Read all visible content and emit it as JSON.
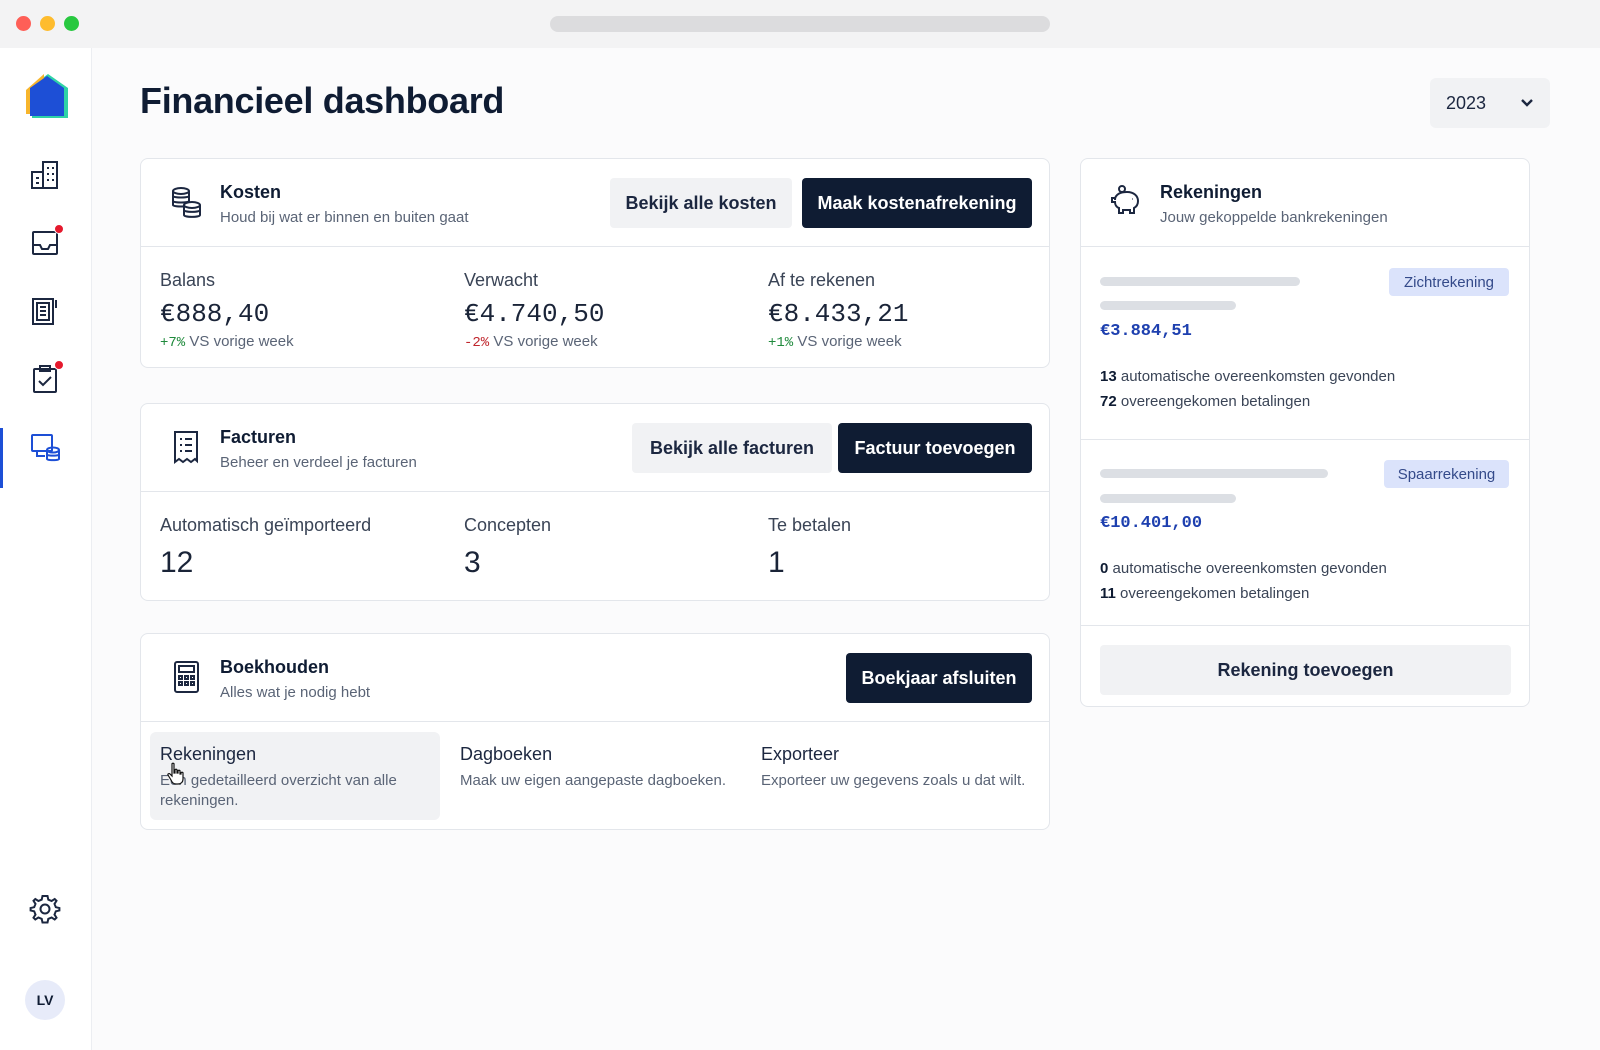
{
  "sidebar": {
    "items": [
      {
        "icon": "buildings-icon",
        "notification": false
      },
      {
        "icon": "inbox-icon",
        "notification": true
      },
      {
        "icon": "ledger-book-icon",
        "notification": false
      },
      {
        "icon": "clipboard-check-icon",
        "notification": true
      },
      {
        "icon": "finance-database-icon",
        "notification": false,
        "active": true
      }
    ],
    "settings_icon": "gear-icon",
    "avatar_initials": "LV"
  },
  "header": {
    "title": "Financieel dashboard",
    "year_select": {
      "value": "2023"
    }
  },
  "kosten": {
    "title": "Kosten",
    "subtitle": "Houd bij wat er binnen en buiten gaat",
    "btn_view_all": "Bekijk alle kosten",
    "btn_create": "Maak kostenafrekening",
    "stats": [
      {
        "label": "Balans",
        "value": "€888,40",
        "change": "+7%",
        "change_type": "positive",
        "compare": "VS vorige week"
      },
      {
        "label": "Verwacht",
        "value": "€4.740,50",
        "change": "-2%",
        "change_type": "negative",
        "compare": "VS vorige week"
      },
      {
        "label": "Af te rekenen",
        "value": "€8.433,21",
        "change": "+1%",
        "change_type": "positive",
        "compare": "VS vorige week"
      }
    ]
  },
  "facturen": {
    "title": "Facturen",
    "subtitle": "Beheer en verdeel je facturen",
    "btn_view_all": "Bekijk alle facturen",
    "btn_add": "Factuur toevoegen",
    "counts": [
      {
        "label": "Automatisch geïmporteerd",
        "value": "12"
      },
      {
        "label": "Concepten",
        "value": "3"
      },
      {
        "label": "Te betalen",
        "value": "1"
      }
    ]
  },
  "boekhouden": {
    "title": "Boekhouden",
    "subtitle": "Alles wat je nodig hebt",
    "btn_close_year": "Boekjaar afsluiten",
    "items": [
      {
        "title": "Rekeningen",
        "description": "Een gedetailleerd overzicht van alle rekeningen.",
        "hovered": true
      },
      {
        "title": "Dagboeken",
        "description": "Maak uw eigen aangepaste dagboeken."
      },
      {
        "title": "Exporteer",
        "description": "Exporteer uw gegevens zoals u dat wilt."
      }
    ]
  },
  "rekeningen": {
    "title": "Rekeningen",
    "subtitle": "Jouw gekoppelde bankrekeningen",
    "accounts": [
      {
        "type": "Zichtrekening",
        "amount": "€3.884,51",
        "auto_matches": "13",
        "auto_matches_text": "automatische overeenkomsten gevonden",
        "payments": "72",
        "payments_text": "overeengekomen betalingen"
      },
      {
        "type": "Spaarrekening",
        "amount": "€10.401,00",
        "auto_matches": "0",
        "auto_matches_text": "automatische overeenkomsten gevonden",
        "payments": "11",
        "payments_text": "overeengekomen betalingen"
      }
    ],
    "btn_add": "Rekening toevoegen"
  },
  "colors": {
    "primary_dark": "#0f1c33",
    "accent_blue": "#1e40af",
    "positive": "#1f8a3c",
    "negative": "#c0262d",
    "notification": "#e5192d"
  }
}
